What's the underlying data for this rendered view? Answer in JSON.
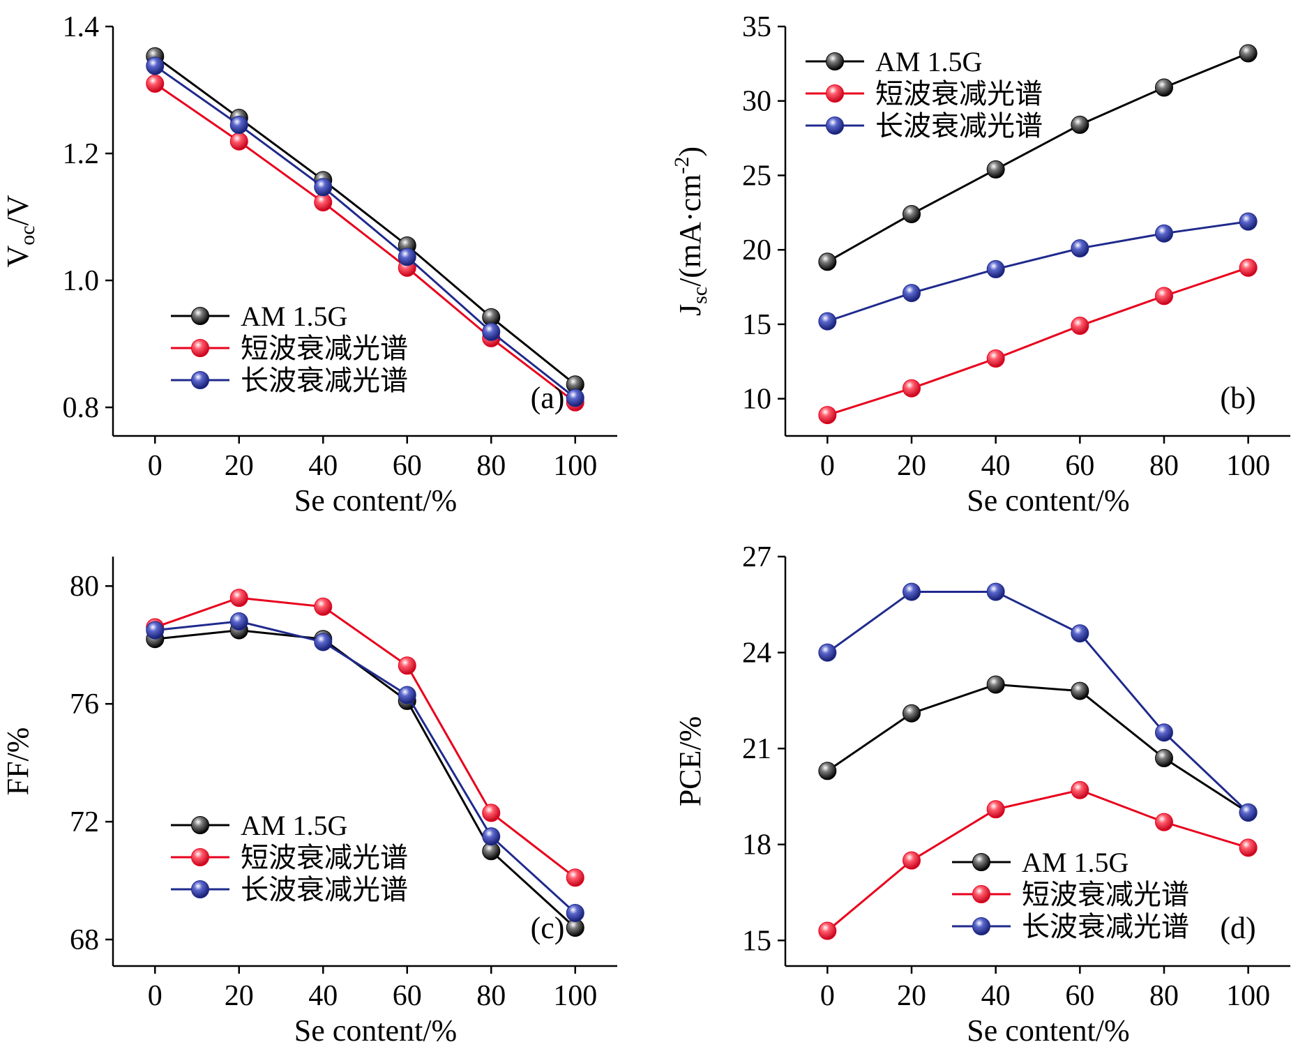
{
  "colors": {
    "am15g": "#000000",
    "short": "#e8001c",
    "long": "#1f2a8c"
  },
  "chart_data": [
    {
      "type": "line",
      "panel": "(a)",
      "xlabel": "Se content/%",
      "ylabel": "V",
      "ylabel_sub": "oc",
      "ylabel_rest": "/V",
      "x": [
        0,
        20,
        40,
        60,
        80,
        100
      ],
      "xticks": [
        "0",
        "20",
        "40",
        "60",
        "80",
        "100"
      ],
      "xlim": [
        -10,
        110
      ],
      "ylim": [
        0.755,
        1.4
      ],
      "yticks": [
        "0.8",
        "1.0",
        "1.2",
        "1.4"
      ],
      "ytick_values": [
        0.8,
        1.0,
        1.2,
        1.4
      ],
      "legend_position": "lower-left",
      "series": [
        {
          "name": "AM 1.5G",
          "values": [
            1.353,
            1.256,
            1.158,
            1.055,
            0.942,
            0.836
          ]
        },
        {
          "name": "短波衰减光谱",
          "values": [
            1.31,
            1.219,
            1.123,
            1.02,
            0.909,
            0.808
          ]
        },
        {
          "name": "长波衰减光谱",
          "values": [
            1.338,
            1.245,
            1.147,
            1.037,
            0.919,
            0.815
          ]
        }
      ]
    },
    {
      "type": "line",
      "panel": "(b)",
      "xlabel": "Se content/%",
      "ylabel": "J",
      "ylabel_sub": "sc",
      "ylabel_rest": "/(mA·cm",
      "ylabel_sup": "-2",
      "ylabel_end": ")",
      "x": [
        0,
        20,
        40,
        60,
        80,
        100
      ],
      "xticks": [
        "0",
        "20",
        "40",
        "60",
        "80",
        "100"
      ],
      "xlim": [
        -10,
        110
      ],
      "ylim": [
        7.5,
        35
      ],
      "yticks": [
        "10",
        "15",
        "20",
        "25",
        "30",
        "35"
      ],
      "ytick_values": [
        10,
        15,
        20,
        25,
        30,
        35
      ],
      "legend_position": "top-left",
      "series": [
        {
          "name": "AM 1.5G",
          "values": [
            19.2,
            22.4,
            25.4,
            28.4,
            30.9,
            33.2
          ]
        },
        {
          "name": "短波衰减光谱",
          "values": [
            8.9,
            10.7,
            12.7,
            14.9,
            16.9,
            18.8
          ]
        },
        {
          "name": "长波衰减光谱",
          "values": [
            15.2,
            17.1,
            18.7,
            20.1,
            21.1,
            21.9
          ]
        }
      ]
    },
    {
      "type": "line",
      "panel": "(c)",
      "xlabel": "Se content/%",
      "ylabel": "FF/%",
      "x": [
        0,
        20,
        40,
        60,
        80,
        100
      ],
      "xticks": [
        "0",
        "20",
        "40",
        "60",
        "80",
        "100"
      ],
      "xlim": [
        -10,
        110
      ],
      "ylim": [
        67.1,
        81
      ],
      "yticks": [
        "68",
        "72",
        "76",
        "80"
      ],
      "ytick_values": [
        68,
        72,
        76,
        80
      ],
      "legend_position": "lower-left",
      "series": [
        {
          "name": "AM 1.5G",
          "values": [
            78.2,
            78.5,
            78.2,
            76.1,
            71.0,
            68.4
          ]
        },
        {
          "name": "短波衰减光谱",
          "values": [
            78.6,
            79.6,
            79.3,
            77.3,
            72.3,
            70.1
          ]
        },
        {
          "name": "长波衰减光谱",
          "values": [
            78.5,
            78.8,
            78.1,
            76.3,
            71.5,
            68.9
          ]
        }
      ]
    },
    {
      "type": "line",
      "panel": "(d)",
      "xlabel": "Se content/%",
      "ylabel": "PCE/%",
      "x": [
        0,
        20,
        40,
        60,
        80,
        100
      ],
      "xticks": [
        "0",
        "20",
        "40",
        "60",
        "80",
        "100"
      ],
      "xlim": [
        -10,
        110
      ],
      "ylim": [
        14.2,
        27
      ],
      "yticks": [
        "15",
        "18",
        "21",
        "24",
        "27"
      ],
      "ytick_values": [
        15,
        18,
        21,
        24,
        27
      ],
      "legend_position": "lower-center",
      "series": [
        {
          "name": "AM 1.5G",
          "values": [
            20.3,
            22.1,
            23.0,
            22.8,
            20.7,
            19.0
          ]
        },
        {
          "name": "短波衰减光谱",
          "values": [
            15.3,
            17.5,
            19.1,
            19.7,
            18.7,
            17.9
          ]
        },
        {
          "name": "长波衰减光谱",
          "values": [
            24.0,
            25.9,
            25.9,
            24.6,
            21.5,
            19.0
          ]
        }
      ]
    }
  ]
}
